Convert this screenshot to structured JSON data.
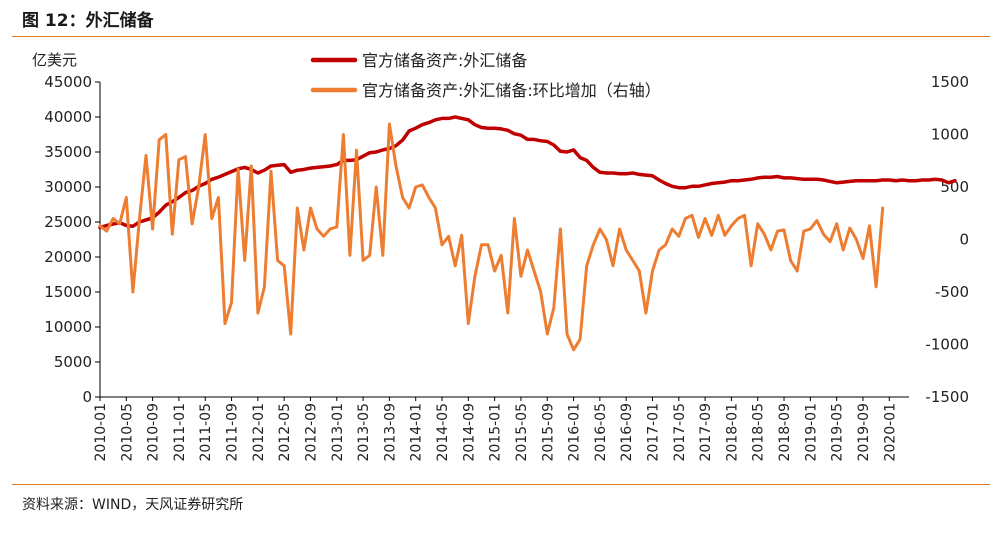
{
  "figure": {
    "title": "图 12：外汇储备",
    "source": "资料来源：WIND，天风证券研究所"
  },
  "chart_data": {
    "type": "line",
    "left_unit": "亿美元",
    "ylim_left": [
      0,
      45000
    ],
    "yticks_left": [
      0,
      5000,
      10000,
      15000,
      20000,
      25000,
      30000,
      35000,
      40000,
      45000
    ],
    "ylim_right": [
      -1500,
      1500
    ],
    "yticks_right": [
      -1500,
      -1000,
      -500,
      0,
      500,
      1000,
      1500
    ],
    "x_start": "2010-01",
    "x_end": "2020-04",
    "x_ticks": [
      "2010-01",
      "2010-05",
      "2010-09",
      "2011-01",
      "2011-05",
      "2011-09",
      "2012-01",
      "2012-05",
      "2012-09",
      "2013-01",
      "2013-05",
      "2013-09",
      "2014-01",
      "2014-05",
      "2014-09",
      "2015-01",
      "2015-05",
      "2015-09",
      "2016-01",
      "2016-05",
      "2016-09",
      "2017-01",
      "2017-05",
      "2017-09",
      "2018-01",
      "2018-05",
      "2018-09",
      "2019-01",
      "2019-05",
      "2019-09",
      "2020-01"
    ],
    "grid": false,
    "legend_position": "top",
    "series": [
      {
        "name": "官方储备资产:外汇储备",
        "axis": "left",
        "color": "#c00000",
        "values": [
          24200,
          24500,
          24700,
          24900,
          24500,
          24400,
          25000,
          25300,
          25600,
          26400,
          27400,
          27900,
          28500,
          29200,
          29500,
          30100,
          30500,
          31100,
          31400,
          31800,
          32200,
          32600,
          32800,
          32500,
          32000,
          32400,
          33000,
          33100,
          33200,
          32100,
          32400,
          32500,
          32700,
          32800,
          32900,
          33000,
          33200,
          33800,
          33800,
          33900,
          34400,
          34900,
          35000,
          35300,
          35500,
          35900,
          36700,
          38000,
          38400,
          38900,
          39200,
          39600,
          39800,
          39800,
          40000,
          39800,
          39600,
          38900,
          38500,
          38400,
          38400,
          38300,
          38100,
          37600,
          37400,
          36800,
          36800,
          36600,
          36500,
          36000,
          35100,
          35000,
          35300,
          34200,
          33800,
          32800,
          32100,
          32000,
          32000,
          31900,
          31900,
          32000,
          31800,
          31700,
          31600,
          31000,
          30500,
          30100,
          29900,
          29900,
          30100,
          30100,
          30300,
          30500,
          30600,
          30700,
          30900,
          30900,
          31000,
          31100,
          31300,
          31400,
          31400,
          31500,
          31300,
          31300,
          31200,
          31100,
          31100,
          31100,
          31000,
          30800,
          30600,
          30700,
          30800,
          30900,
          30900,
          30900,
          30900,
          31000,
          31000,
          30900,
          31000,
          30900,
          30900,
          31000,
          31000,
          31100,
          31000,
          30600,
          30900
        ]
      },
      {
        "name": "官方储备资产:外汇储备:环比增加（右轴）",
        "axis": "right",
        "color": "#ed7d31",
        "values": [
          130,
          80,
          200,
          150,
          400,
          -500,
          200,
          800,
          100,
          950,
          1000,
          50,
          760,
          790,
          150,
          500,
          1000,
          200,
          400,
          -800,
          -600,
          670,
          -200,
          700,
          -700,
          -450,
          650,
          -200,
          -250,
          -900,
          300,
          -100,
          300,
          100,
          30,
          100,
          120,
          1000,
          -150,
          850,
          -200,
          -150,
          500,
          -150,
          1100,
          700,
          400,
          300,
          500,
          520,
          400,
          300,
          -50,
          30,
          -250,
          40,
          -800,
          -350,
          -50,
          -50,
          -300,
          -150,
          -700,
          200,
          -350,
          -100,
          -300,
          -500,
          -900,
          -650,
          100,
          -900,
          -1050,
          -950,
          -250,
          -50,
          100,
          0,
          -250,
          100,
          -100,
          -200,
          -300,
          -700,
          -300,
          -100,
          -50,
          100,
          30,
          200,
          230,
          20,
          200,
          40,
          230,
          40,
          130,
          200,
          230,
          -250,
          150,
          50,
          -100,
          80,
          90,
          -200,
          -300,
          80,
          100,
          180,
          50,
          -20,
          150,
          -100,
          110,
          0,
          -180,
          130,
          -450,
          300
        ]
      }
    ]
  }
}
